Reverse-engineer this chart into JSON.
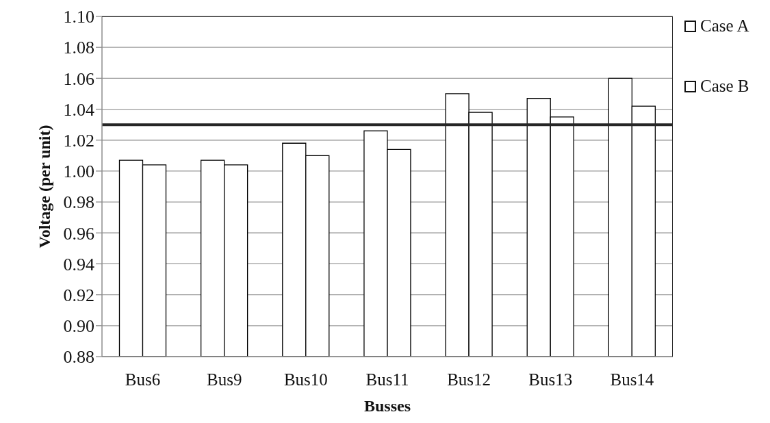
{
  "chart_data": {
    "type": "bar",
    "xlabel": "Busses",
    "ylabel": "Voltage (per unit)",
    "categories": [
      "Bus6",
      "Bus9",
      "Bus10",
      "Bus11",
      "Bus12",
      "Bus13",
      "Bus14"
    ],
    "series": [
      {
        "name": "Case A",
        "color": "#ffffff",
        "values": [
          1.007,
          1.007,
          1.018,
          1.026,
          1.05,
          1.047,
          1.06
        ]
      },
      {
        "name": "Case B",
        "color": "#ffffff",
        "values": [
          1.004,
          1.004,
          1.01,
          1.014,
          1.038,
          1.035,
          1.042
        ]
      }
    ],
    "ylim": [
      0.88,
      1.1
    ],
    "yticks": [
      0.88,
      {
        "value": 0.9,
        "label": "0.90"
      },
      0.92,
      0.94,
      0.96,
      0.98,
      {
        "value": 1,
        "label": "1.00"
      },
      1.02,
      1.04,
      1.06,
      1.08,
      {
        "value": 1.1,
        "label": "1.10"
      }
    ],
    "ref_lines": [
      {
        "axis": "y",
        "value": 1.03,
        "color": "#262626"
      }
    ],
    "grid": "y",
    "legend": "right"
  }
}
